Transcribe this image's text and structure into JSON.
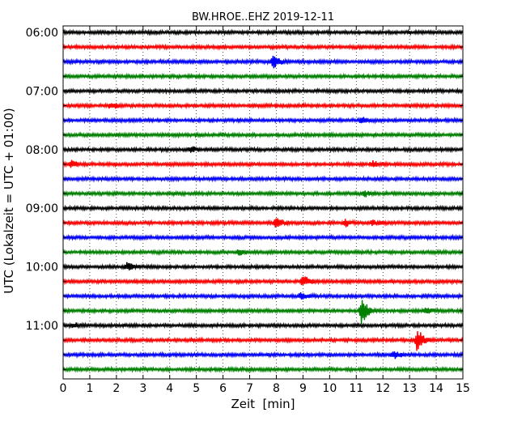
{
  "chart_data": {
    "type": "line",
    "title": "BW.HROE..EHZ 2019-12-11",
    "xlabel": "Zeit  [min]",
    "ylabel": "UTC (Lokalzeit = UTC + 01:00)",
    "xlim": [
      0,
      15
    ],
    "x_ticks": [
      "0",
      "1",
      "2",
      "3",
      "4",
      "5",
      "6",
      "7",
      "8",
      "9",
      "10",
      "11",
      "12",
      "13",
      "14",
      "15"
    ],
    "y_tick_labels": [
      "06:00",
      "07:00",
      "08:00",
      "09:00",
      "10:00",
      "11:00"
    ],
    "trace_interval_minutes": 15,
    "trace_start_times": [
      "06:00",
      "06:15",
      "06:30",
      "06:45",
      "07:00",
      "07:15",
      "07:30",
      "07:45",
      "08:00",
      "08:15",
      "08:30",
      "08:45",
      "09:00",
      "09:15",
      "09:30",
      "09:45",
      "10:00",
      "10:15",
      "10:30",
      "10:45",
      "11:00",
      "11:15",
      "11:30",
      "11:45"
    ],
    "colors": [
      "#000000",
      "#ff0000",
      "#0000ff",
      "#008000"
    ],
    "grid": "vertical dotted lines at each minute",
    "events": [
      {
        "trace": 2,
        "minute": 7.9,
        "amplitude": 0.75
      },
      {
        "trace": 5,
        "minute": 1.8,
        "amplitude": 0.35
      },
      {
        "trace": 6,
        "minute": 11.2,
        "amplitude": 0.3
      },
      {
        "trace": 8,
        "minute": 4.8,
        "amplitude": 0.3
      },
      {
        "trace": 9,
        "minute": 0.3,
        "amplitude": 0.35
      },
      {
        "trace": 9,
        "minute": 11.6,
        "amplitude": 0.35
      },
      {
        "trace": 11,
        "minute": 11.3,
        "amplitude": 0.3
      },
      {
        "trace": 13,
        "minute": 8.0,
        "amplitude": 0.7
      },
      {
        "trace": 13,
        "minute": 10.6,
        "amplitude": 0.35
      },
      {
        "trace": 13,
        "minute": 11.6,
        "amplitude": 0.3
      },
      {
        "trace": 15,
        "minute": 6.6,
        "amplitude": 0.3
      },
      {
        "trace": 16,
        "minute": 2.4,
        "amplitude": 0.4
      },
      {
        "trace": 17,
        "minute": 9.0,
        "amplitude": 0.65
      },
      {
        "trace": 18,
        "minute": 8.9,
        "amplitude": 0.35
      },
      {
        "trace": 19,
        "minute": 11.2,
        "amplitude": 1.5
      },
      {
        "trace": 19,
        "minute": 13.6,
        "amplitude": 0.3
      },
      {
        "trace": 20,
        "minute": 0.4,
        "amplitude": 0.3
      },
      {
        "trace": 21,
        "minute": 13.3,
        "amplitude": 1.3
      },
      {
        "trace": 22,
        "minute": 12.4,
        "amplitude": 0.4
      }
    ]
  }
}
